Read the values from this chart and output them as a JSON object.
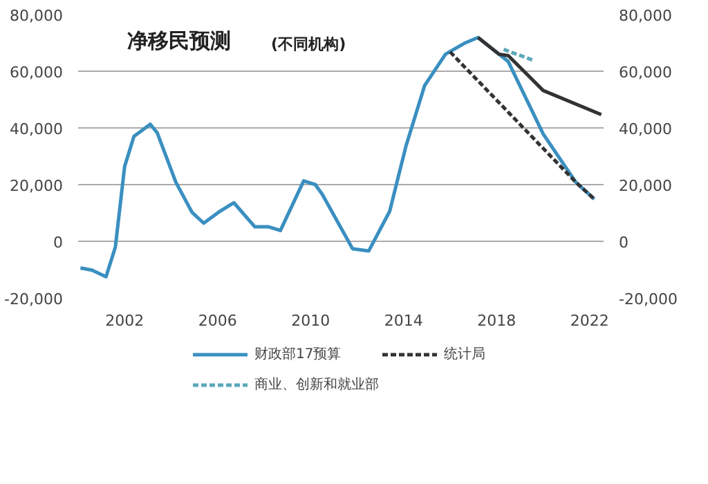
{
  "chart_data": {
    "type": "line",
    "title": "净移民预测",
    "subtitle": "(不同机构)",
    "xlim": [
      2000,
      2022.6
    ],
    "xticks": [
      2002,
      2006,
      2010,
      2014,
      2018,
      2022
    ],
    "ylim": [
      -20000,
      80000
    ],
    "yticks": [
      {
        "value": -20000,
        "label": "-20,000"
      },
      {
        "value": 0,
        "label": "0"
      },
      {
        "value": 20000,
        "label": "20,000"
      },
      {
        "value": 40000,
        "label": "40,000"
      },
      {
        "value": 60000,
        "label": "60,000"
      },
      {
        "value": 80000,
        "label": "80,000"
      }
    ],
    "y2lim": [
      -20000,
      80000
    ],
    "y2ticks": [
      {
        "value": -20000,
        "label": "-20,000"
      },
      {
        "value": 0,
        "label": "0"
      },
      {
        "value": 20000,
        "label": "20,000"
      },
      {
        "value": 40000,
        "label": "40,000"
      },
      {
        "value": 60000,
        "label": "60,000"
      },
      {
        "value": 80000,
        "label": "80,000"
      }
    ],
    "grid": "y",
    "legend": "bottom",
    "marker": "none",
    "series": [
      {
        "name": "财政部17预算",
        "color": "#3a8fc0",
        "line_style": "solid",
        "x": [
          2000.1,
          2000.6,
          2001.2,
          2001.6,
          2002,
          2002.4,
          2003.1,
          2003.4,
          2004.2,
          2004.9,
          2005.4,
          2006.1,
          2006.7,
          2007.6,
          2008.2,
          2008.7,
          2009.7,
          2010.2,
          2010.5,
          2011.8,
          2012.5,
          2013.4,
          2014.1,
          2014.9,
          2015.8,
          2016.6,
          2017.2,
          2018.5,
          2020,
          2021.4,
          2022.2
        ],
        "values": [
          -9400,
          -10200,
          -12500,
          -2100,
          26400,
          37000,
          41300,
          38300,
          20900,
          10200,
          6400,
          10600,
          13600,
          5100,
          5100,
          3800,
          21300,
          20000,
          16600,
          -2600,
          -3400,
          10600,
          33600,
          54900,
          66000,
          69800,
          71900,
          63400,
          37900,
          20900,
          14900
        ]
      },
      {
        "color": "#333333",
        "line_style": "solid",
        "x": [
          2017.2,
          2018.1,
          2018.5,
          2020,
          2022.5
        ],
        "values": [
          71900,
          66000,
          65500,
          53200,
          44700
        ]
      },
      {
        "name": "商业、创新和就业部",
        "color": "#5aa8b8",
        "line_style": "dashed",
        "x": [
          2018.3,
          2019.6
        ],
        "values": [
          67700,
          63800
        ]
      },
      {
        "name": "统计局",
        "color": "#333333",
        "line_style": "dashed",
        "x": [
          2016,
          2021.4,
          2022.2
        ],
        "values": [
          66800,
          20900,
          14900
        ]
      }
    ]
  }
}
